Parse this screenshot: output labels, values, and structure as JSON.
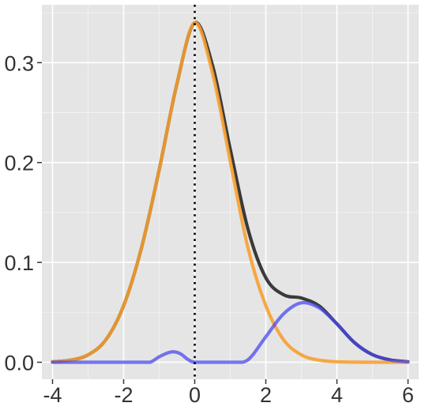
{
  "chart_data": {
    "type": "line",
    "title": "",
    "xlabel": "",
    "ylabel": "",
    "xlim": [
      -4.3,
      6.3
    ],
    "ylim": [
      -0.017,
      0.358
    ],
    "x_ticks": [
      -4,
      -2,
      0,
      2,
      4,
      6
    ],
    "x_tick_labels": [
      "-4",
      "-2",
      "0",
      "2",
      "4",
      "6"
    ],
    "y_ticks": [
      0.0,
      0.1,
      0.2,
      0.3
    ],
    "y_tick_labels": [
      "0.0",
      "0.1",
      "0.2",
      "0.3"
    ],
    "grid": true,
    "vline": {
      "x": 0,
      "style": "dotted",
      "color": "#000000"
    },
    "colors": {
      "panel": "#e5e5e5",
      "grid_major": "#ffffff",
      "grid_minor": "#f2f2f2",
      "tick_text": "#333333",
      "series_total": "#000000",
      "series_main": "#f7a030",
      "series_bump": "#4a4af0"
    },
    "series": [
      {
        "key": "total",
        "color": "#000000",
        "opacity": 0.75,
        "x": [
          -4,
          -3.5,
          -3,
          -2.5,
          -2,
          -1.5,
          -1,
          -0.5,
          0,
          0.5,
          1,
          1.5,
          2,
          2.5,
          3,
          3.5,
          4,
          4.5,
          5,
          5.5,
          6
        ],
        "y": [
          0.0005,
          0.0021,
          0.0074,
          0.0225,
          0.0567,
          0.1142,
          0.1927,
          0.2789,
          0.34,
          0.2973,
          0.2132,
          0.1331,
          0.0846,
          0.0676,
          0.0643,
          0.0564,
          0.0384,
          0.0195,
          0.0076,
          0.0023,
          0.0005
        ]
      },
      {
        "key": "main",
        "color": "#f7a030",
        "opacity": 0.9,
        "x": [
          -4,
          -3.5,
          -3,
          -2.5,
          -2,
          -1.5,
          -1,
          -0.5,
          0,
          0.5,
          1,
          1.5,
          2,
          2.5,
          3,
          3.5,
          4,
          4.5,
          5,
          5.5,
          6
        ],
        "y": [
          0.0005,
          0.0021,
          0.0074,
          0.0225,
          0.0567,
          0.1142,
          0.1927,
          0.2789,
          0.34,
          0.2896,
          0.2012,
          0.1142,
          0.0567,
          0.0225,
          0.0074,
          0.0021,
          0.0005,
          0.0001,
          0.0,
          0.0,
          0.0
        ]
      },
      {
        "key": "bump",
        "color": "#4a4af0",
        "opacity": 0.75,
        "x": [
          -4,
          -3.5,
          -3,
          -2.5,
          -2,
          -1.5,
          -1.25,
          -1,
          -0.75,
          -0.6,
          -0.4,
          -0.2,
          0,
          0.5,
          1,
          1.35,
          1.6,
          2,
          2.5,
          3,
          3.5,
          4,
          4.5,
          5,
          5.5,
          6
        ],
        "y": [
          0,
          0,
          0,
          0,
          0,
          0,
          0.0,
          0.0055,
          0.0095,
          0.0105,
          0.0085,
          0.003,
          0,
          0,
          0,
          0.0,
          0.006,
          0.0255,
          0.0485,
          0.0595,
          0.0545,
          0.0385,
          0.0195,
          0.0076,
          0.0023,
          0.0005
        ]
      }
    ]
  }
}
